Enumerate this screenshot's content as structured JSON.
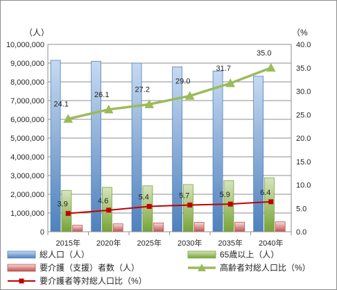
{
  "chart_data": {
    "type": "bar",
    "categories": [
      "2015年",
      "2020年",
      "2025年",
      "2030年",
      "2035年",
      "2040年"
    ],
    "left_axis": {
      "unit_label": "（人）",
      "range": [
        0,
        10000000
      ],
      "ticks": [
        "0",
        "1,000,000",
        "2,000,000",
        "3,000,000",
        "4,000,000",
        "5,000,000",
        "6,000,000",
        "7,000,000",
        "8,000,000",
        "9,000,000",
        "10,000,000"
      ]
    },
    "right_axis": {
      "unit_label": "（%",
      "range": [
        0,
        40
      ],
      "ticks": [
        "0.0",
        "5.0",
        "10.0",
        "15.0",
        "20.0",
        "25.0",
        "30.0",
        "35.0",
        "40.0"
      ]
    },
    "series": [
      {
        "name": "総人口（人）",
        "kind": "bar",
        "axis": "left",
        "color_top": "#c6d9f1",
        "color_bottom": "#4f81bd",
        "values": [
          9150000,
          9100000,
          9000000,
          8800000,
          8580000,
          8300000
        ]
      },
      {
        "name": "65歳以上（人）",
        "kind": "bar",
        "axis": "left",
        "color_top": "#d7e4bd",
        "color_bottom": "#76a336",
        "values": [
          2200000,
          2370000,
          2450000,
          2520000,
          2730000,
          2880000
        ]
      },
      {
        "name": "要介護（支援）者数（人）",
        "kind": "bar",
        "axis": "left",
        "color_top": "#f2dcdb",
        "color_bottom": "#c0504d",
        "values": [
          350000,
          420000,
          470000,
          500000,
          510000,
          530000
        ]
      },
      {
        "name": "高齢者対総人口比（%）",
        "kind": "line",
        "axis": "right",
        "color": "#9bbb59",
        "marker": "triangle",
        "values": [
          24.1,
          26.1,
          27.2,
          29.0,
          31.7,
          35.0
        ],
        "labels": [
          "24.1",
          "26.1",
          "27.2",
          "29.0",
          "31.7",
          "35.0"
        ]
      },
      {
        "name": "要介護者等対総人口比（%）",
        "kind": "line",
        "axis": "right",
        "color": "#c00000",
        "marker": "square",
        "values": [
          3.9,
          4.6,
          5.4,
          5.7,
          5.9,
          6.4
        ],
        "labels": [
          "3.9",
          "4.6",
          "5.4",
          "5.7",
          "5.9",
          "6.4"
        ]
      }
    ],
    "grid": true,
    "legend": "bottom"
  }
}
